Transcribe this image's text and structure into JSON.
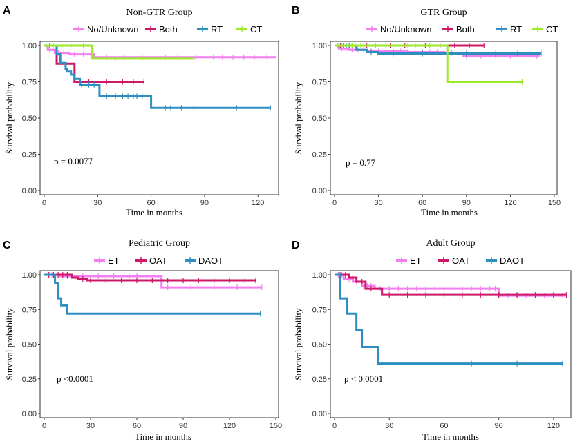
{
  "figure": {
    "colors": {
      "nounknown": "#f47ff0",
      "both": "#cc1867",
      "rt": "#2f8ec0",
      "ct": "#9be825",
      "et": "#f47ff0",
      "oat": "#cc1867",
      "daot": "#2f8ec0"
    }
  },
  "chart_data": [
    {
      "panel": "A",
      "type": "line",
      "title": "Non-GTR Group",
      "xlabel": "Time in months",
      "ylabel": "Survival probability",
      "xlim": [
        0,
        130
      ],
      "ylim": [
        0,
        1
      ],
      "xticks": [
        0,
        30,
        60,
        90,
        120
      ],
      "xtick_labels": [
        "0",
        "30",
        "60",
        "90",
        "120"
      ],
      "yticks": [
        0,
        0.25,
        0.5,
        0.75,
        1
      ],
      "ytick_labels": [
        "0.00",
        "0.25",
        "0.50",
        "0.75",
        "1.00"
      ],
      "annotation": "p = 0.0077",
      "legend_position": "top",
      "series": [
        {
          "name": "No/Unknown",
          "color": "#f47ff0",
          "steps": [
            [
              0,
              1
            ],
            [
              2,
              0.97
            ],
            [
              6,
              0.95
            ],
            [
              14,
              0.94
            ],
            [
              28,
              0.92
            ],
            [
              130,
              0.92
            ]
          ],
          "censor": [
            3,
            5,
            8,
            11,
            17,
            22,
            35,
            45,
            55,
            68,
            75,
            85,
            95,
            100,
            106,
            112,
            118,
            125
          ]
        },
        {
          "name": "Both",
          "color": "#cc1867",
          "steps": [
            [
              0,
              1
            ],
            [
              7,
              0.875
            ],
            [
              17,
              0.75
            ],
            [
              56,
              0.75
            ]
          ],
          "censor": [
            20,
            25,
            35,
            44,
            50,
            56
          ]
        },
        {
          "name": "RT",
          "color": "#2f8ec0",
          "steps": [
            [
              0,
              1
            ],
            [
              7,
              0.94
            ],
            [
              9,
              0.88
            ],
            [
              12,
              0.84
            ],
            [
              13,
              0.82
            ],
            [
              15,
              0.8
            ],
            [
              17,
              0.77
            ],
            [
              20,
              0.73
            ],
            [
              31,
              0.65
            ],
            [
              60,
              0.57
            ],
            [
              127,
              0.57
            ]
          ],
          "censor": [
            1,
            3,
            21,
            25,
            28,
            35,
            40,
            44,
            47,
            50,
            52,
            55,
            68,
            71,
            77,
            84,
            108,
            127
          ]
        },
        {
          "name": "CT",
          "color": "#9be825",
          "steps": [
            [
              0,
              1
            ],
            [
              27,
              0.91
            ],
            [
              84,
              0.91
            ]
          ],
          "censor": [
            5,
            10,
            15,
            22,
            40,
            55
          ]
        }
      ]
    },
    {
      "panel": "B",
      "type": "line",
      "title": "GTR Group",
      "xlabel": "Time in months",
      "ylabel": "Survival probability",
      "xlim": [
        0,
        150
      ],
      "ylim": [
        0,
        1
      ],
      "xticks": [
        0,
        30,
        60,
        90,
        120,
        150
      ],
      "xtick_labels": [
        "0",
        "30",
        "60",
        "90",
        "120",
        "150"
      ],
      "yticks": [
        0,
        0.25,
        0.5,
        0.75,
        1
      ],
      "ytick_labels": [
        "0.00",
        "0.25",
        "0.50",
        "0.75",
        "1.00"
      ],
      "annotation": "p = 0.77",
      "legend_position": "top",
      "series": [
        {
          "name": "No/Unknown",
          "color": "#f47ff0",
          "steps": [
            [
              0,
              1
            ],
            [
              3,
              0.98
            ],
            [
              10,
              0.97
            ],
            [
              22,
              0.96
            ],
            [
              50,
              0.955
            ],
            [
              75,
              0.95
            ],
            [
              88,
              0.93
            ],
            [
              140,
              0.93
            ]
          ],
          "censor": [
            2,
            5,
            8,
            12,
            16,
            20,
            25,
            30,
            35,
            40,
            45,
            50,
            55,
            60,
            65,
            70,
            80,
            90,
            100,
            110,
            120,
            130,
            138
          ]
        },
        {
          "name": "Both",
          "color": "#cc1867",
          "steps": [
            [
              0,
              1
            ],
            [
              102,
              1
            ]
          ],
          "censor": [
            4,
            10,
            18,
            22,
            38,
            48,
            55,
            62,
            72,
            82,
            92,
            102
          ]
        },
        {
          "name": "RT",
          "color": "#2f8ec0",
          "steps": [
            [
              0,
              1
            ],
            [
              15,
              0.97
            ],
            [
              22,
              0.955
            ],
            [
              30,
              0.945
            ],
            [
              141,
              0.945
            ]
          ],
          "censor": [
            3,
            6,
            8,
            10,
            12,
            14,
            20,
            25,
            40,
            60,
            90,
            110,
            125,
            141
          ]
        },
        {
          "name": "CT",
          "color": "#9be825",
          "steps": [
            [
              0,
              1
            ],
            [
              77,
              0.75
            ],
            [
              128,
              0.75
            ]
          ],
          "censor": [
            5,
            12,
            18,
            28,
            35,
            50,
            65,
            128
          ]
        }
      ]
    },
    {
      "panel": "C",
      "type": "line",
      "title": "Pediatric Group",
      "xlabel": "Time in months",
      "ylabel": "Survival probability",
      "xlim": [
        0,
        150
      ],
      "ylim": [
        0,
        1
      ],
      "xticks": [
        0,
        30,
        60,
        90,
        120,
        150
      ],
      "xtick_labels": [
        "0",
        "30",
        "60",
        "90",
        "120",
        "150"
      ],
      "yticks": [
        0,
        0.25,
        0.5,
        0.75,
        1
      ],
      "ytick_labels": [
        "0.00",
        "0.25",
        "0.50",
        "0.75",
        "1.00"
      ],
      "annotation": "p <0.0001",
      "legend_position": "top",
      "series": [
        {
          "name": "ET",
          "color": "#f47ff0",
          "steps": [
            [
              0,
              1
            ],
            [
              10,
              0.99
            ],
            [
              60,
              0.99
            ],
            [
              76,
              0.91
            ],
            [
              141,
              0.91
            ]
          ],
          "censor": [
            5,
            15,
            25,
            35,
            45,
            55,
            60,
            80,
            95,
            110,
            125,
            141
          ]
        },
        {
          "name": "OAT",
          "color": "#cc1867",
          "steps": [
            [
              0,
              1
            ],
            [
              18,
              0.98
            ],
            [
              22,
              0.97
            ],
            [
              28,
              0.96
            ],
            [
              137,
              0.96
            ]
          ],
          "censor": [
            3,
            6,
            9,
            12,
            15,
            20,
            25,
            30,
            40,
            50,
            60,
            70,
            80,
            90,
            100,
            110,
            120,
            130,
            137
          ]
        },
        {
          "name": "DAOT",
          "color": "#2f8ec0",
          "steps": [
            [
              0,
              1
            ],
            [
              7,
              0.94
            ],
            [
              9,
              0.83
            ],
            [
              11,
              0.78
            ],
            [
              15,
              0.72
            ],
            [
              140,
              0.72
            ]
          ],
          "censor": [
            140
          ]
        }
      ]
    },
    {
      "panel": "D",
      "type": "line",
      "title": "Adult Group",
      "xlabel": "Time in months",
      "ylabel": "Survival probability",
      "xlim": [
        0,
        128
      ],
      "ylim": [
        0,
        1
      ],
      "xticks": [
        0,
        30,
        60,
        90,
        120
      ],
      "xtick_labels": [
        "0",
        "30",
        "60",
        "90",
        "120"
      ],
      "yticks": [
        0,
        0.25,
        0.5,
        0.75,
        1
      ],
      "ytick_labels": [
        "0.00",
        "0.25",
        "0.50",
        "0.75",
        "1.00"
      ],
      "annotation": "p < 0.0001",
      "legend_position": "top",
      "series": [
        {
          "name": "ET",
          "color": "#f47ff0",
          "steps": [
            [
              0,
              1
            ],
            [
              5,
              0.97
            ],
            [
              10,
              0.95
            ],
            [
              15,
              0.92
            ],
            [
              22,
              0.9
            ],
            [
              89,
              0.9
            ],
            [
              90,
              0.85
            ],
            [
              126,
              0.85
            ]
          ],
          "censor": [
            2,
            4,
            8,
            12,
            16,
            18,
            20,
            25,
            30,
            35,
            40,
            45,
            50,
            55,
            60,
            65,
            70,
            75,
            80,
            85,
            88,
            95,
            100,
            105,
            110,
            115,
            120,
            125
          ]
        },
        {
          "name": "OAT",
          "color": "#cc1867",
          "steps": [
            [
              0,
              1
            ],
            [
              8,
              0.98
            ],
            [
              12,
              0.95
            ],
            [
              17,
              0.9
            ],
            [
              26,
              0.855
            ],
            [
              127,
              0.855
            ]
          ],
          "censor": [
            3,
            6,
            10,
            15,
            20,
            30,
            40,
            50,
            60,
            70,
            80,
            90,
            100,
            110,
            120,
            127
          ]
        },
        {
          "name": "DAOT",
          "color": "#2f8ec0",
          "steps": [
            [
              0,
              1
            ],
            [
              3,
              0.83
            ],
            [
              7,
              0.72
            ],
            [
              12,
              0.6
            ],
            [
              15,
              0.48
            ],
            [
              24,
              0.36
            ],
            [
              125,
              0.36
            ]
          ],
          "censor": [
            75,
            100,
            125
          ]
        }
      ]
    }
  ]
}
